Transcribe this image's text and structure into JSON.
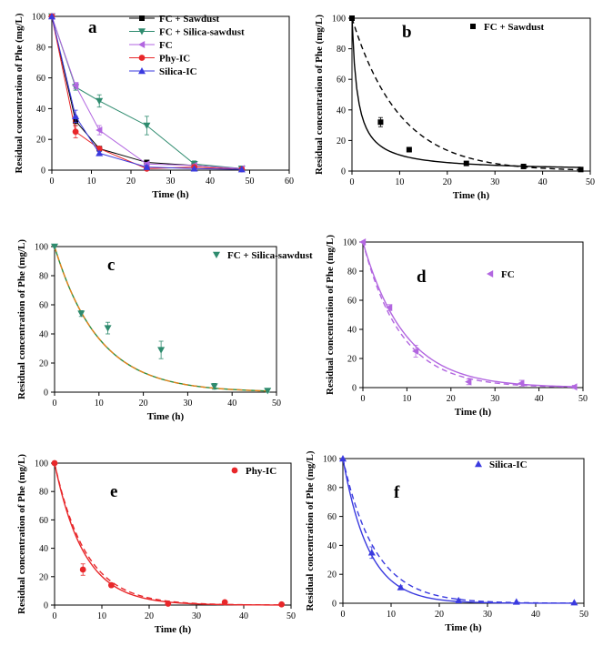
{
  "chart_data": [
    {
      "panel": "a",
      "type": "line",
      "xlabel": "Time (h)",
      "ylabel": "Residual concentration of Phe (mg/L)",
      "xlim": [
        0,
        60
      ],
      "ylim": [
        0,
        100
      ],
      "xticks": [
        "0",
        "10",
        "20",
        "30",
        "40",
        "50",
        "60"
      ],
      "yticks": [
        "0",
        "20",
        "40",
        "60",
        "80",
        "100"
      ],
      "legend_position": "top-right",
      "series": [
        {
          "name": "FC + Sawdust",
          "color": "#000000",
          "marker": "square",
          "x": [
            0,
            6,
            12,
            24,
            36,
            48
          ],
          "y": [
            100,
            32,
            14,
            5,
            3,
            1
          ],
          "err": [
            0,
            3,
            1,
            1,
            1,
            0
          ]
        },
        {
          "name": "FC + Silica-sawdust",
          "color": "#2e8b6e",
          "marker": "triangle-down",
          "x": [
            0,
            6,
            12,
            24,
            36,
            48
          ],
          "y": [
            100,
            54,
            45,
            29,
            4,
            1
          ],
          "err": [
            0,
            2,
            4,
            6,
            2,
            0
          ]
        },
        {
          "name": "FC",
          "color": "#b266e0",
          "marker": "triangle-left",
          "x": [
            0,
            6,
            12,
            24,
            36,
            48
          ],
          "y": [
            100,
            55,
            26,
            4,
            3,
            1
          ],
          "err": [
            0,
            2,
            3,
            1,
            1,
            0
          ]
        },
        {
          "name": "Phy-IC",
          "color": "#e8272a",
          "marker": "circle",
          "x": [
            0,
            6,
            12,
            24,
            36,
            48
          ],
          "y": [
            100,
            25,
            14,
            1,
            2,
            0.5
          ],
          "err": [
            0,
            4,
            1,
            0,
            0,
            0
          ]
        },
        {
          "name": "Silica-IC",
          "color": "#3a3adf",
          "marker": "triangle-up",
          "x": [
            0,
            6,
            12,
            24,
            36,
            48
          ],
          "y": [
            100,
            35,
            11,
            2,
            1,
            0.5
          ],
          "err": [
            0,
            4,
            1,
            1,
            0,
            0
          ]
        }
      ]
    },
    {
      "panel": "b",
      "type": "scatter",
      "xlabel": "Time (h)",
      "ylabel": "Residual concentration of Phe (mg/L)",
      "xlim": [
        0,
        50
      ],
      "ylim": [
        0,
        100
      ],
      "xticks": [
        "0",
        "10",
        "20",
        "30",
        "40",
        "50"
      ],
      "yticks": [
        "0",
        "20",
        "40",
        "60",
        "80",
        "100"
      ],
      "legend_position": "top-right",
      "series": [
        {
          "name": "FC + Sawdust",
          "color": "#000000",
          "marker": "square",
          "x": [
            0,
            6,
            12,
            24,
            36,
            48
          ],
          "y": [
            100,
            32,
            14,
            5,
            3,
            1
          ],
          "err": [
            0,
            3,
            1,
            1,
            1,
            0
          ]
        }
      ],
      "fits": [
        {
          "style": "solid",
          "color": "#000000",
          "model": "second-order",
          "k": 0.0085
        },
        {
          "style": "dashed",
          "color": "#000000",
          "model": "first-order",
          "k": 0.1
        }
      ]
    },
    {
      "panel": "c",
      "type": "scatter",
      "xlabel": "Time (h)",
      "ylabel": "Residual concentration of Phe (mg/L)",
      "xlim": [
        0,
        50
      ],
      "ylim": [
        0,
        100
      ],
      "xticks": [
        "0",
        "10",
        "20",
        "30",
        "40",
        "50"
      ],
      "yticks": [
        "0",
        "20",
        "40",
        "60",
        "80",
        "100"
      ],
      "legend_position": "top-right",
      "series": [
        {
          "name": "FC + Silica-sawdust",
          "color": "#2e8b6e",
          "marker": "triangle-down",
          "x": [
            0,
            6,
            12,
            24,
            36,
            48
          ],
          "y": [
            100,
            54,
            44,
            29,
            4,
            1
          ],
          "err": [
            0,
            2,
            4,
            6,
            2,
            1
          ]
        }
      ],
      "fits": [
        {
          "style": "solid",
          "color": "#2e8b3a",
          "model": "first-order",
          "k": 0.1
        },
        {
          "style": "dashed",
          "color": "#e8821a",
          "model": "first-order",
          "k": 0.1
        }
      ]
    },
    {
      "panel": "d",
      "type": "scatter",
      "xlabel": "Time (h)",
      "ylabel": "Residual concentration of Phe (mg/L)",
      "xlim": [
        0,
        50
      ],
      "ylim": [
        0,
        100
      ],
      "xticks": [
        "0",
        "10",
        "20",
        "30",
        "40",
        "50"
      ],
      "yticks": [
        "0",
        "20",
        "40",
        "60",
        "80",
        "100"
      ],
      "legend_position": "top-right",
      "series": [
        {
          "name": "FC",
          "color": "#b266e0",
          "marker": "triangle-left",
          "x": [
            0,
            6,
            12,
            24,
            36,
            48
          ],
          "y": [
            100,
            55,
            25,
            4,
            3,
            0.5
          ],
          "err": [
            0,
            2,
            4,
            2,
            2,
            1
          ]
        }
      ],
      "fits": [
        {
          "style": "solid",
          "color": "#b266e0",
          "model": "first-order",
          "k": 0.105
        },
        {
          "style": "dashed",
          "color": "#b266e0",
          "model": "first-order",
          "k": 0.115
        }
      ]
    },
    {
      "panel": "e",
      "type": "scatter",
      "xlabel": "Time (h)",
      "ylabel": "Residual concentration of Phe (mg/L)",
      "xlim": [
        0,
        50
      ],
      "ylim": [
        0,
        100
      ],
      "xticks": [
        "0",
        "10",
        "20",
        "30",
        "40",
        "50"
      ],
      "yticks": [
        "0",
        "20",
        "40",
        "60",
        "80",
        "100"
      ],
      "legend_position": "top-right",
      "series": [
        {
          "name": "Phy-IC",
          "color": "#e8272a",
          "marker": "circle",
          "x": [
            0,
            6,
            12,
            24,
            36,
            48
          ],
          "y": [
            100,
            25,
            14,
            1,
            2,
            0.5
          ],
          "err": [
            0,
            4,
            1,
            0,
            0,
            0
          ]
        }
      ],
      "fits": [
        {
          "style": "solid",
          "color": "#e8272a",
          "model": "first-order",
          "k": 0.16
        },
        {
          "style": "dashed",
          "color": "#e8272a",
          "model": "first-order",
          "k": 0.15
        }
      ]
    },
    {
      "panel": "f",
      "type": "scatter",
      "xlabel": "Time (h)",
      "ylabel": "Residual concentration of Phe (mg/L)",
      "xlim": [
        0,
        50
      ],
      "ylim": [
        0,
        100
      ],
      "xticks": [
        "0",
        "10",
        "20",
        "30",
        "40",
        "50"
      ],
      "yticks": [
        "0",
        "20",
        "40",
        "60",
        "80",
        "100"
      ],
      "legend_position": "top-right",
      "series": [
        {
          "name": "Silica-IC",
          "color": "#3a3adf",
          "marker": "triangle-up",
          "x": [
            0,
            6,
            12,
            24,
            36,
            48
          ],
          "y": [
            100,
            35,
            11,
            2,
            1,
            0.5
          ],
          "err": [
            0,
            4,
            1,
            1,
            0,
            0
          ]
        }
      ],
      "fits": [
        {
          "style": "solid",
          "color": "#3a3adf",
          "model": "first-order",
          "k": 0.185
        },
        {
          "style": "dashed",
          "color": "#3a3adf",
          "model": "first-order",
          "k": 0.15
        }
      ]
    }
  ]
}
